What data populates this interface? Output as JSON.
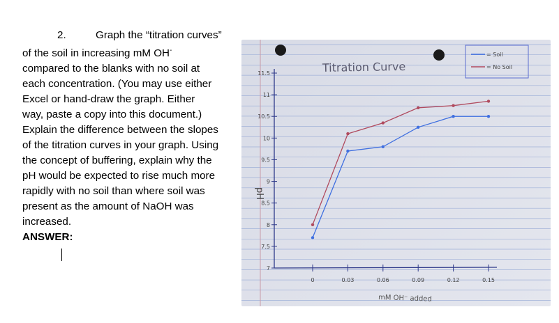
{
  "question": {
    "number": "2.",
    "first_line": "Graph the “titration curves”",
    "line2_main": "of the soil in increasing mM OH",
    "line2_sup": "-",
    "rest": [
      "compared to the blanks with no soil at",
      "each concentration. (You may use either",
      "Excel or hand-draw the graph. Either",
      "way, paste a copy into this document.)",
      "Explain the difference between the slopes",
      "of the titration curves in your graph. Using",
      "the concept of buffering, explain why the",
      "pH would be expected to rise much more",
      "rapidly with no soil than where soil was",
      "present as the amount of NaOH was",
      "increased."
    ],
    "answer_label": "ANSWER:"
  },
  "graph": {
    "title": "Titration Curve",
    "ylabel": "pH",
    "xlabel": "mM OH⁻ added",
    "legend": [
      {
        "label": "= Soil",
        "color": "#b04a5e"
      },
      {
        "label": "= No Soil",
        "color": "#3f6fe0"
      }
    ],
    "y_ticks": [
      "11.5",
      "11",
      "10.5",
      "10",
      "9.5",
      "9",
      "8.5",
      "8",
      "7.5",
      "7"
    ],
    "x_ticks": [
      "0",
      "0.03",
      "0.06",
      "0.09",
      "0.12",
      "0.15"
    ]
  },
  "chart_data": {
    "type": "line",
    "title": "Titration Curve",
    "xlabel": "mM OH⁻ added",
    "ylabel": "pH",
    "xlim": [
      0,
      0.15
    ],
    "ylim": [
      7,
      11.5
    ],
    "series": [
      {
        "name": "Soil",
        "color": "#b04a5e",
        "x": [
          0,
          0.03,
          0.06,
          0.09,
          0.12,
          0.15
        ],
        "y": [
          8.0,
          10.1,
          10.35,
          10.7,
          10.75,
          10.85
        ]
      },
      {
        "name": "No Soil",
        "color": "#3f6fe0",
        "x": [
          0,
          0.03,
          0.06,
          0.09,
          0.12,
          0.15
        ],
        "y": [
          7.7,
          9.7,
          9.8,
          10.25,
          10.5,
          10.5
        ]
      }
    ]
  }
}
